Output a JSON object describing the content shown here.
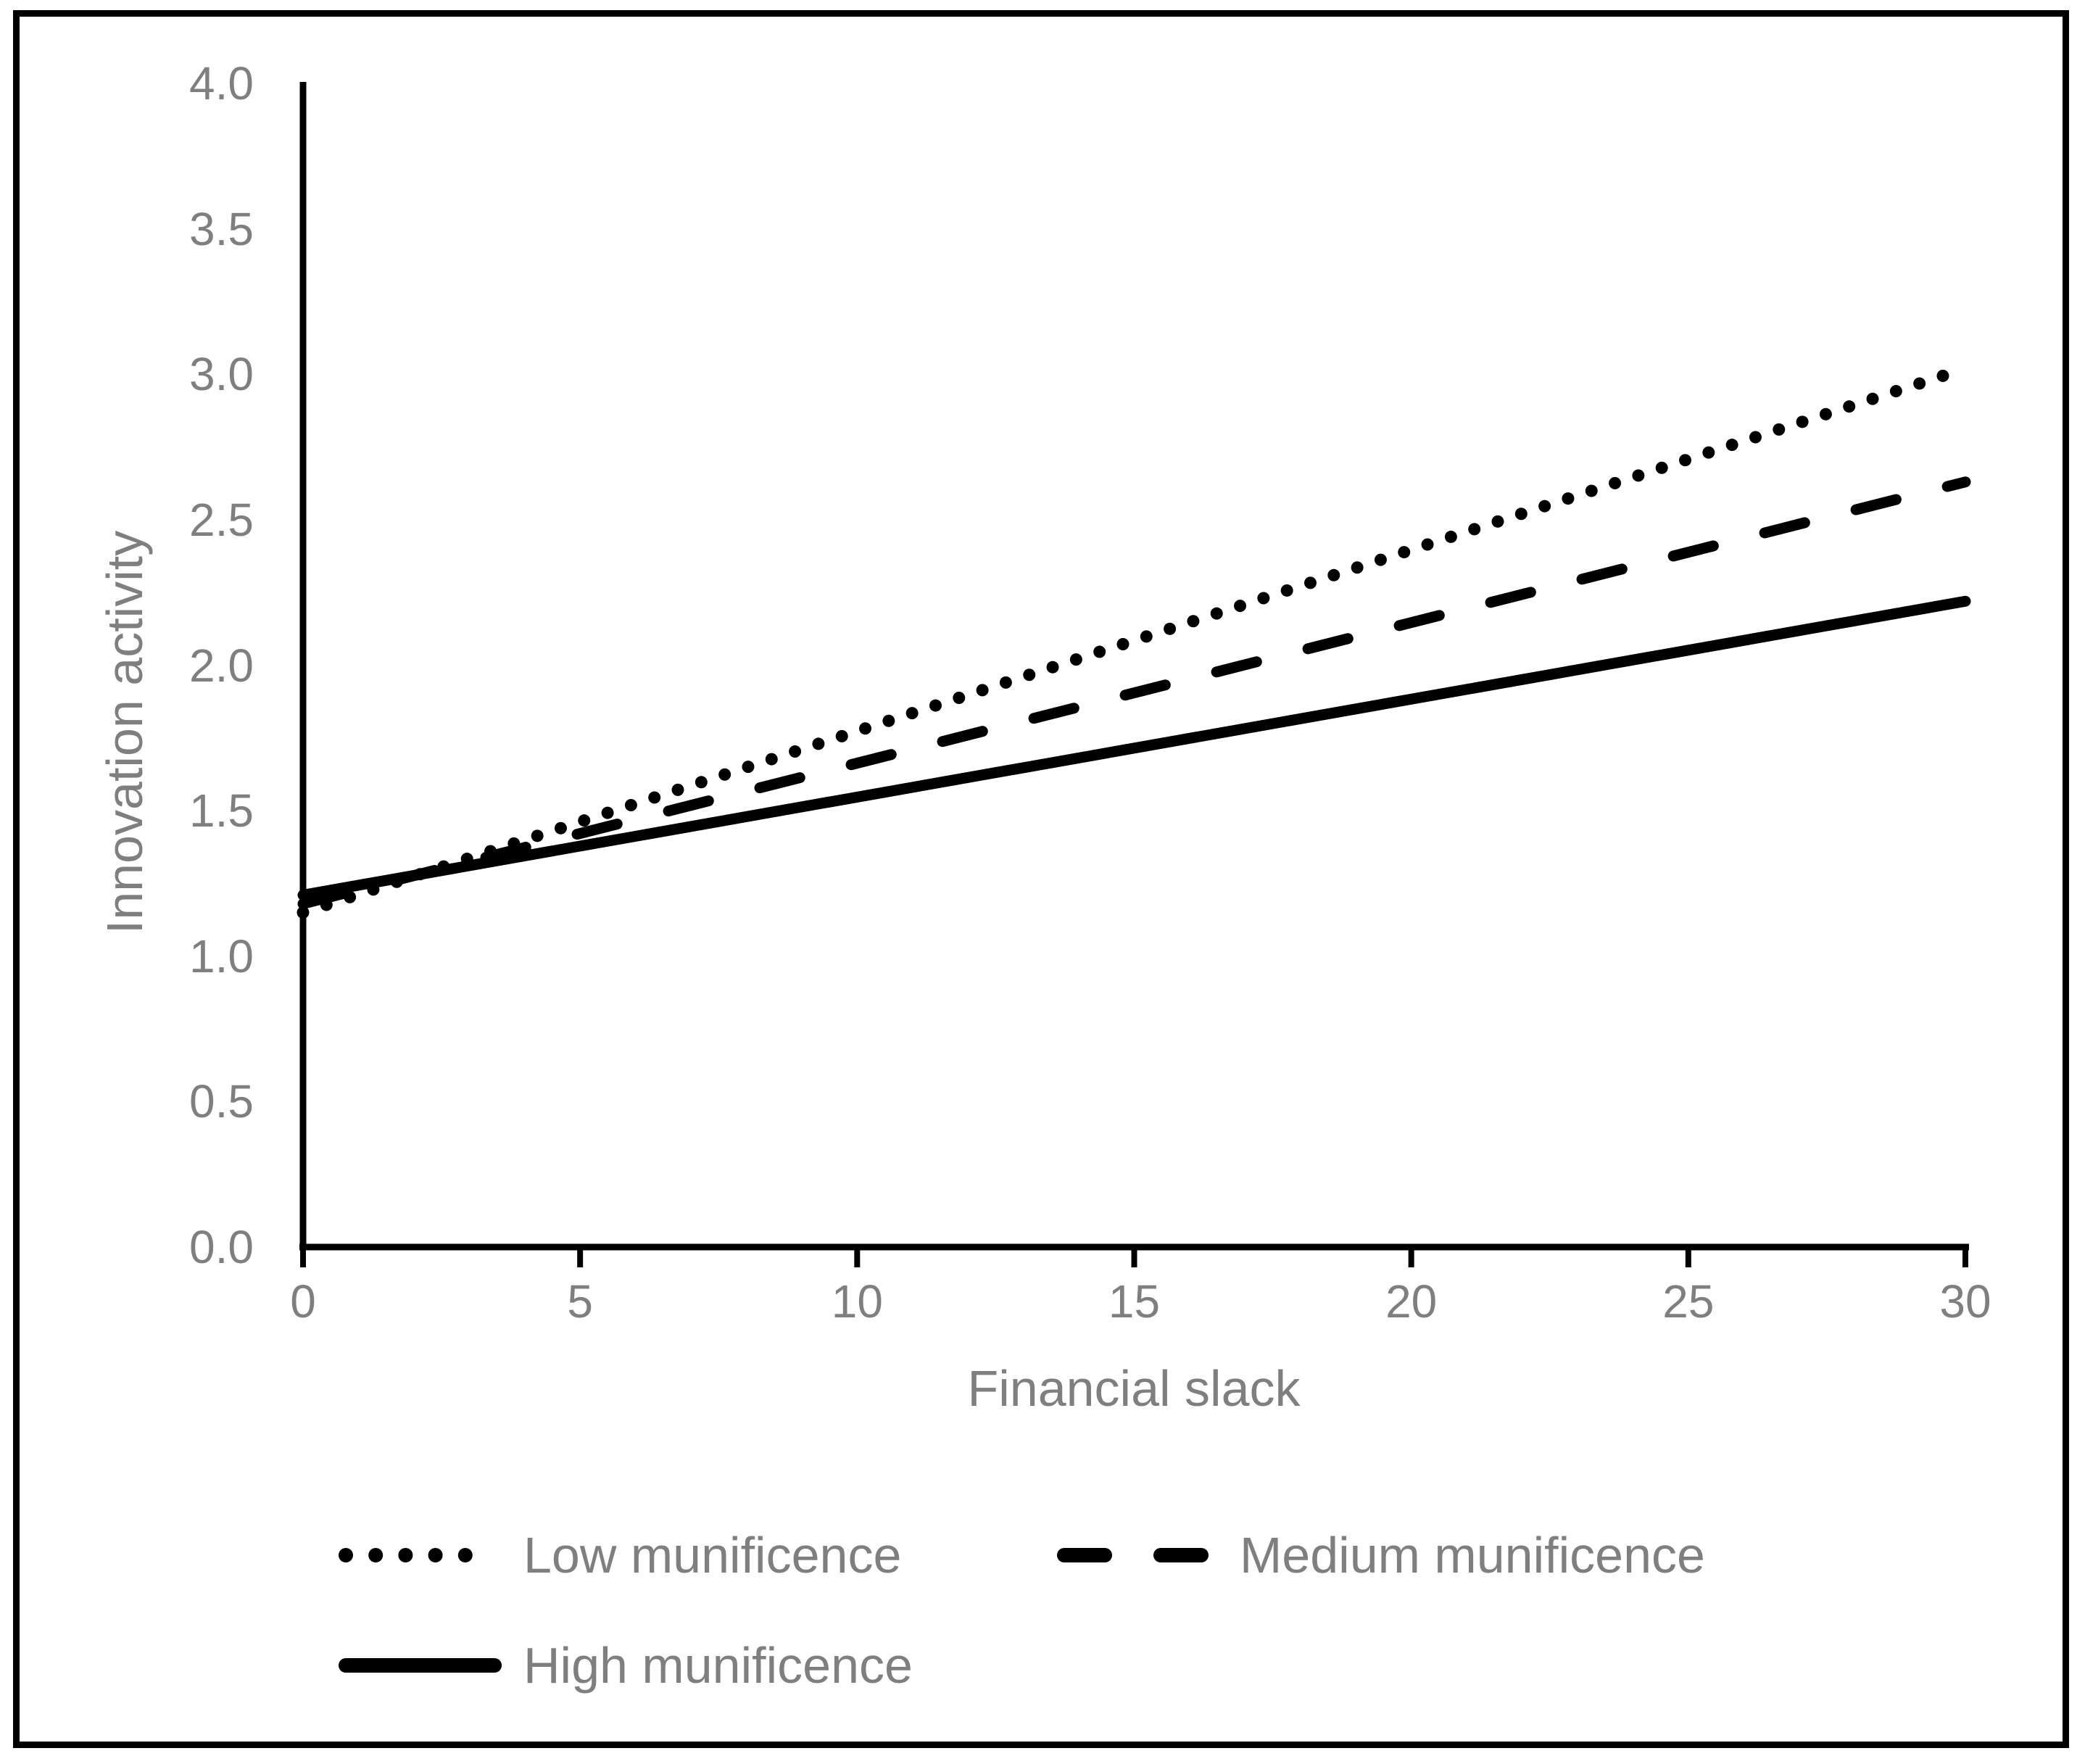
{
  "chart_data": {
    "type": "line",
    "title": "",
    "xlabel": "Financial slack",
    "ylabel": "Innovation activity",
    "xlim": [
      0,
      30
    ],
    "ylim": [
      0.0,
      4.0
    ],
    "x_ticks": [
      {
        "label": "0",
        "value": 0
      },
      {
        "label": "5",
        "value": 5
      },
      {
        "label": "10",
        "value": 10
      },
      {
        "label": "15",
        "value": 15
      },
      {
        "label": "20",
        "value": 20
      },
      {
        "label": "25",
        "value": 25
      },
      {
        "label": "30",
        "value": 30
      }
    ],
    "y_ticks": [
      {
        "label": "0.0",
        "value": 0.0
      },
      {
        "label": "0.5",
        "value": 0.5
      },
      {
        "label": "1.0",
        "value": 1.0
      },
      {
        "label": "1.5",
        "value": 1.5
      },
      {
        "label": "2.0",
        "value": 2.0
      },
      {
        "label": "2.5",
        "value": 2.5
      },
      {
        "label": "3.0",
        "value": 3.0
      },
      {
        "label": "3.5",
        "value": 3.5
      },
      {
        "label": "4.0",
        "value": 4.0
      }
    ],
    "grid": false,
    "legend_position": "bottom",
    "series": [
      {
        "name": "Low munificence",
        "style": "dotted",
        "color": "#000000",
        "x": [
          0,
          30
        ],
        "values": [
          1.15,
          3.02
        ]
      },
      {
        "name": "Medium munificence",
        "style": "dashed",
        "color": "#000000",
        "x": [
          0,
          30
        ],
        "values": [
          1.18,
          2.63
        ]
      },
      {
        "name": "High munificence",
        "style": "solid",
        "color": "#000000",
        "x": [
          0,
          30
        ],
        "values": [
          1.21,
          2.22
        ]
      }
    ],
    "axis_color": "#000000",
    "label_color": "#7f7f7f",
    "frame_color": "#000000",
    "background_color": "#ffffff"
  }
}
